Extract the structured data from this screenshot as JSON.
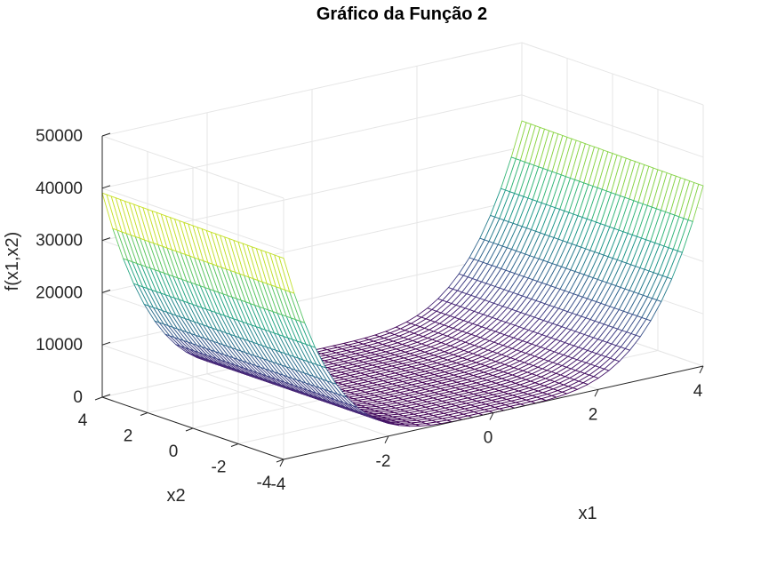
{
  "chart_data": {
    "type": "surface",
    "title": "Gráfico da Função 2",
    "xlabel": "x1",
    "ylabel": "x2",
    "zlabel": "f(x1,x2)",
    "x_range": [
      -4,
      4
    ],
    "y_range": [
      -4,
      4
    ],
    "z_range": [
      0,
      50000
    ],
    "x_ticks": [
      "-4",
      "-2",
      "0",
      "2",
      "4"
    ],
    "y_ticks": [
      "-4",
      "-2",
      "0",
      "2",
      "4"
    ],
    "z_ticks": [
      "0",
      "10000",
      "20000",
      "30000",
      "40000",
      "50000"
    ],
    "grid": true,
    "colormap": "viridis",
    "surface": {
      "shape": "valley along x2, rising steeply toward x1 = ±4",
      "z_at_x1_min_edge": 38500,
      "z_at_x1_max_edge": 34500,
      "z_min": 0,
      "mesh_lines_x1": 41,
      "mesh_lines_x2": 41
    }
  },
  "colors": {
    "grid": "#e6e6e6",
    "axis": "#262626",
    "viridis": [
      "#440154",
      "#482878",
      "#3e4989",
      "#31688e",
      "#26828e",
      "#1f9e89",
      "#35b779",
      "#6ece58",
      "#b5de2b",
      "#fde725"
    ]
  }
}
